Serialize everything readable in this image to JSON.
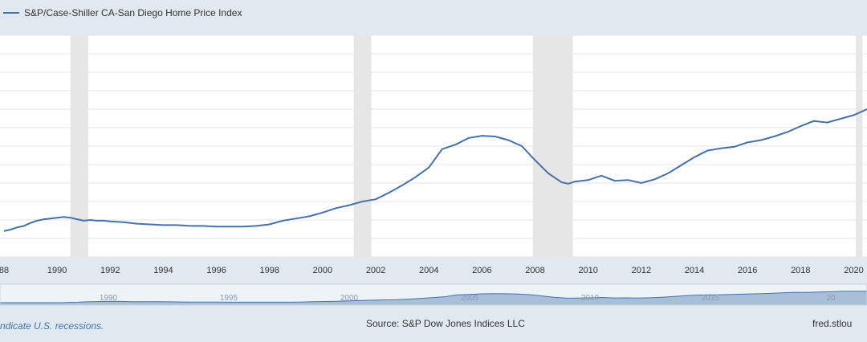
{
  "footer": {
    "recession_note": "ndicate U.S. recessions.",
    "source": "Source: S&P Dow Jones Indices LLC",
    "site": "fred.stlou"
  },
  "colors": {
    "series": "#4572a7",
    "recession": "#e6e6e6",
    "plot_background": "#ffffff",
    "page_background": "#e1e9f0",
    "navigator_fill": "#a8bfda"
  },
  "chart_data": {
    "type": "line",
    "title": "",
    "xlabel": "",
    "ylabel": "",
    "grid": true,
    "legend": "top-left",
    "x_tick_labels": [
      "88",
      "1990",
      "1992",
      "1994",
      "1996",
      "1998",
      "2000",
      "2002",
      "2004",
      "2006",
      "2008",
      "2010",
      "2012",
      "2014",
      "2016",
      "2018",
      "2020"
    ],
    "navigator_tick_labels": [
      "1990",
      "1995",
      "2000",
      "2005",
      "2010",
      "2015",
      "20"
    ],
    "xlim": [
      1987.85,
      2020.5
    ],
    "ylim": [
      0,
      300
    ],
    "recessions": [
      [
        1990.5,
        1991.17
      ],
      [
        2001.17,
        2001.83
      ],
      [
        2007.92,
        2009.42
      ],
      [
        2020.08,
        2020.33
      ]
    ],
    "series": [
      {
        "name": "S&P/Case-Shiller CA-San Diego Home Price Index",
        "x": [
          1988,
          1988.25,
          1988.5,
          1988.75,
          1989,
          1989.25,
          1989.5,
          1989.75,
          1990,
          1990.25,
          1990.5,
          1990.75,
          1991,
          1991.25,
          1991.5,
          1991.75,
          1992,
          1992.5,
          1993,
          1993.5,
          1994,
          1994.5,
          1995,
          1995.5,
          1996,
          1996.5,
          1997,
          1997.5,
          1998,
          1998.5,
          1999,
          1999.5,
          2000,
          2000.5,
          2001,
          2001.5,
          2002,
          2002.5,
          2003,
          2003.5,
          2004,
          2004.5,
          2005,
          2005.5,
          2006,
          2006.5,
          2007,
          2007.5,
          2008,
          2008.5,
          2009,
          2009.25,
          2009.5,
          2010,
          2010.5,
          2011,
          2011.5,
          2012,
          2012.5,
          2013,
          2013.5,
          2014,
          2014.5,
          2015,
          2015.5,
          2016,
          2016.5,
          2017,
          2017.5,
          2018,
          2018.5,
          2019,
          2019.5,
          2020,
          2020.5
        ],
        "values": [
          35,
          37,
          40,
          42,
          46,
          49,
          51,
          52,
          53,
          54,
          53,
          51,
          49,
          50,
          49,
          49,
          48,
          47,
          45,
          44,
          43,
          43,
          42,
          42,
          41,
          41,
          41,
          42,
          44,
          49,
          52,
          55,
          60,
          66,
          70,
          75,
          78,
          87,
          97,
          108,
          121,
          146,
          152,
          161,
          164,
          163,
          158,
          150,
          131,
          113,
          101,
          99,
          102,
          104,
          110,
          103,
          104,
          100,
          105,
          113,
          124,
          135,
          144,
          147,
          149,
          155,
          158,
          163,
          169,
          177,
          184,
          182,
          187,
          192,
          200
        ]
      }
    ]
  }
}
